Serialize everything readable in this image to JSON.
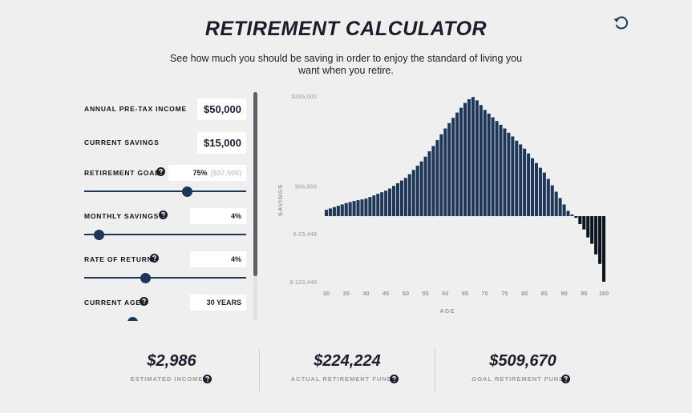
{
  "header": {
    "title": "RETIREMENT CALCULATOR",
    "subtitle": "See how much you should be saving in order to enjoy the standard of living you want when you retire."
  },
  "inputs": [
    {
      "label": "ANNUAL PRE-TAX INCOME",
      "value": "$50,000"
    },
    {
      "label": "CURRENT SAVINGS",
      "value": "$15,000"
    },
    {
      "label": "RETIREMENT GOAL",
      "value": "75%",
      "note": "($37,500)"
    },
    {
      "label": "MONTHLY SAVINGS",
      "value": "4%"
    },
    {
      "label": "RATE OF RETURN",
      "value": "4%"
    },
    {
      "label": "CURRENT AGE",
      "value": "30 YEARS"
    }
  ],
  "chart_data": {
    "type": "bar",
    "x_label": "AGE",
    "y_label": "SAVINGS",
    "x": [
      30,
      31,
      32,
      33,
      34,
      35,
      36,
      37,
      38,
      39,
      40,
      41,
      42,
      43,
      44,
      45,
      46,
      47,
      48,
      49,
      50,
      51,
      52,
      53,
      54,
      55,
      56,
      57,
      58,
      59,
      60,
      61,
      62,
      63,
      64,
      65,
      66,
      67,
      68,
      69,
      70,
      71,
      72,
      73,
      74,
      75,
      76,
      77,
      78,
      79,
      80,
      81,
      82,
      83,
      84,
      85,
      86,
      87,
      88,
      89,
      90,
      91,
      92,
      93,
      94,
      95,
      96,
      97,
      98,
      99,
      100
    ],
    "values": [
      12000,
      14500,
      17000,
      19500,
      22000,
      24500,
      26500,
      28500,
      30000,
      31500,
      33000,
      36000,
      39000,
      42000,
      45000,
      48000,
      52000,
      57000,
      62000,
      67000,
      72000,
      79000,
      87000,
      95000,
      103000,
      112000,
      122000,
      132000,
      143000,
      154000,
      165000,
      175000,
      185000,
      195000,
      204000,
      213000,
      220000,
      224224,
      218000,
      209000,
      200000,
      193000,
      186000,
      179000,
      172000,
      165000,
      157000,
      150000,
      142000,
      135000,
      127000,
      118000,
      109000,
      100000,
      91000,
      82000,
      70000,
      58000,
      46000,
      34000,
      22000,
      10000,
      3000,
      -3000,
      -15000,
      -25000,
      -40000,
      -52000,
      -72000,
      -90000,
      -123449
    ],
    "color": "#1e3658",
    "negative_color": "#0c141f",
    "xlim": [
      30,
      100
    ],
    "xticks": [
      30,
      35,
      40,
      45,
      50,
      55,
      60,
      65,
      70,
      75,
      80,
      85,
      90,
      95,
      100
    ],
    "ylim": [
      -123449,
      226000
    ],
    "yticks": [
      {
        "value": -123449,
        "label": "$-123,449"
      },
      {
        "value": -33449,
        "label": "$-33,449"
      },
      {
        "value": 56550,
        "label": "$56,550"
      },
      {
        "value": 226000,
        "label": "$226,000"
      }
    ],
    "grid": false
  },
  "summary": [
    {
      "value": "$2,986",
      "label": "ESTIMATED INCOME"
    },
    {
      "value": "$224,224",
      "label": "ACTUAL RETIREMENT FUND"
    },
    {
      "value": "$509,670",
      "label": "GOAL RETIREMENT FUND"
    }
  ]
}
